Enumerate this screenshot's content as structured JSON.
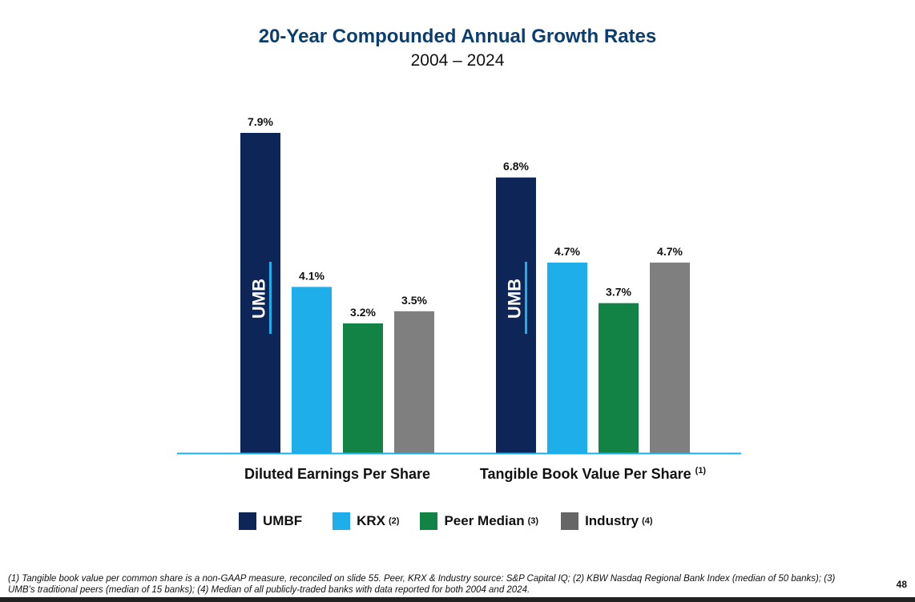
{
  "chart_data": {
    "type": "bar",
    "title": "20-Year Compounded Annual Growth Rates",
    "subtitle": "2004 – 2024",
    "categories": [
      "Diluted Earnings Per Share",
      "Tangible Book Value Per Share"
    ],
    "category_notes": [
      "",
      "(1)"
    ],
    "series": [
      {
        "name": "UMBF",
        "note": "",
        "color": "#0d2557",
        "values": [
          7.9,
          6.8
        ],
        "labels": [
          "7.9%",
          "6.8%"
        ]
      },
      {
        "name": "KRX",
        "note": "(2)",
        "color": "#1eaeea",
        "values": [
          4.1,
          4.7
        ],
        "labels": [
          "4.1%",
          "4.7%"
        ]
      },
      {
        "name": "Peer Median",
        "note": "(3)",
        "color": "#128245",
        "values": [
          3.2,
          3.7
        ],
        "labels": [
          "3.2%",
          "3.7%"
        ]
      },
      {
        "name": "Industry",
        "note": "(4)",
        "color": "#7f7f7f",
        "values": [
          3.5,
          4.7
        ],
        "labels": [
          "3.5%",
          "4.7%"
        ]
      }
    ],
    "bar_logo": "UMB",
    "ylim": [
      0,
      7.9
    ],
    "grid": false,
    "legend_position": "bottom"
  },
  "footnote_line1": "(1) Tangible book value per common share is a non-GAAP measure, reconciled on slide 55. Peer, KRX & Industry source: S&P Capital IQ; (2) KBW Nasdaq Regional Bank Index (median of 50 banks); (3)",
  "footnote_line2": "UMB’s traditional peers (median of 15 banks); (4) Median of all publicly-traded banks with data reported for both 2004 and 2024.",
  "page_number": "48"
}
